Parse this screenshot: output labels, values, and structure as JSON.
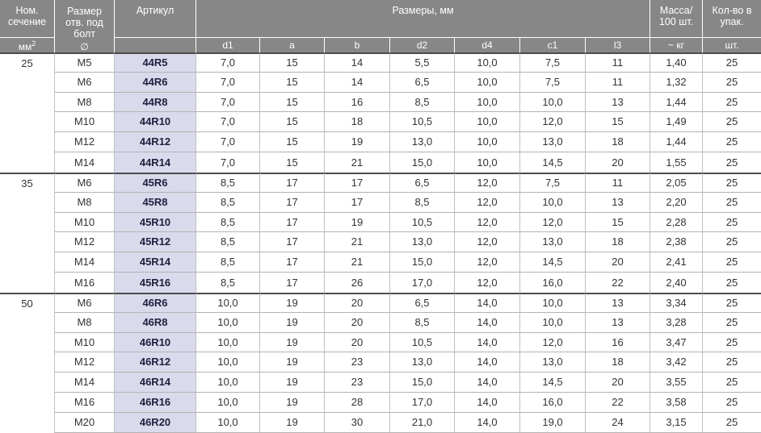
{
  "table": {
    "header": {
      "col1_title": "Ном.\nсечение",
      "col1_unit": "мм",
      "col1_unit_sup": "2",
      "col2_title": "Размер\nотв. под\nболт",
      "col2_unit": "∅",
      "col3_title": "Артикул",
      "col3_unit": "",
      "dims_title": "Размеры, мм",
      "dims_cols": [
        "d1",
        "a",
        "b",
        "d2",
        "d4",
        "c1",
        "l3"
      ],
      "mass_title": "Масса/\n100 шт.",
      "mass_unit": "~ кг",
      "pack_title": "Кол-во в\nупак.",
      "pack_unit": "шт."
    },
    "columns": [
      "bolt-size",
      "article",
      "d1",
      "a",
      "b",
      "d2",
      "d4",
      "c1",
      "l3",
      "mass",
      "pack"
    ],
    "sections": [
      {
        "section": "25",
        "rows": [
          [
            "M5",
            "44R5",
            "7,0",
            "15",
            "14",
            "5,5",
            "10,0",
            "7,5",
            "11",
            "1,40",
            "25"
          ],
          [
            "M6",
            "44R6",
            "7,0",
            "15",
            "14",
            "6,5",
            "10,0",
            "7,5",
            "11",
            "1,32",
            "25"
          ],
          [
            "M8",
            "44R8",
            "7,0",
            "15",
            "16",
            "8,5",
            "10,0",
            "10,0",
            "13",
            "1,44",
            "25"
          ],
          [
            "M10",
            "44R10",
            "7,0",
            "15",
            "18",
            "10,5",
            "10,0",
            "12,0",
            "15",
            "1,49",
            "25"
          ],
          [
            "M12",
            "44R12",
            "7,0",
            "15",
            "19",
            "13,0",
            "10,0",
            "13,0",
            "18",
            "1,44",
            "25"
          ],
          [
            "M14",
            "44R14",
            "7,0",
            "15",
            "21",
            "15,0",
            "10,0",
            "14,5",
            "20",
            "1,55",
            "25"
          ]
        ]
      },
      {
        "section": "35",
        "rows": [
          [
            "M6",
            "45R6",
            "8,5",
            "17",
            "17",
            "6,5",
            "12,0",
            "7,5",
            "11",
            "2,05",
            "25"
          ],
          [
            "M8",
            "45R8",
            "8,5",
            "17",
            "17",
            "8,5",
            "12,0",
            "10,0",
            "13",
            "2,20",
            "25"
          ],
          [
            "M10",
            "45R10",
            "8,5",
            "17",
            "19",
            "10,5",
            "12,0",
            "12,0",
            "15",
            "2,28",
            "25"
          ],
          [
            "M12",
            "45R12",
            "8,5",
            "17",
            "21",
            "13,0",
            "12,0",
            "13,0",
            "18",
            "2,38",
            "25"
          ],
          [
            "M14",
            "45R14",
            "8,5",
            "17",
            "21",
            "15,0",
            "12,0",
            "14,5",
            "20",
            "2,41",
            "25"
          ],
          [
            "M16",
            "45R16",
            "8,5",
            "17",
            "26",
            "17,0",
            "12,0",
            "16,0",
            "22",
            "2,40",
            "25"
          ]
        ]
      },
      {
        "section": "50",
        "rows": [
          [
            "M6",
            "46R6",
            "10,0",
            "19",
            "20",
            "6,5",
            "14,0",
            "10,0",
            "13",
            "3,34",
            "25"
          ],
          [
            "M8",
            "46R8",
            "10,0",
            "19",
            "20",
            "8,5",
            "14,0",
            "10,0",
            "13",
            "3,28",
            "25"
          ],
          [
            "M10",
            "46R10",
            "10,0",
            "19",
            "20",
            "10,5",
            "14,0",
            "12,0",
            "16",
            "3,47",
            "25"
          ],
          [
            "M12",
            "46R12",
            "10,0",
            "19",
            "23",
            "13,0",
            "14,0",
            "13,0",
            "18",
            "3,42",
            "25"
          ],
          [
            "M14",
            "46R14",
            "10,0",
            "19",
            "23",
            "15,0",
            "14,0",
            "14,5",
            "20",
            "3,55",
            "25"
          ],
          [
            "M16",
            "46R16",
            "10,0",
            "19",
            "28",
            "17,0",
            "14,0",
            "16,0",
            "22",
            "3,58",
            "25"
          ],
          [
            "M20",
            "46R20",
            "10,0",
            "19",
            "30",
            "21,0",
            "14,0",
            "19,0",
            "24",
            "3,15",
            "25"
          ]
        ]
      }
    ],
    "colors": {
      "header_bg": "#878787",
      "header_text": "#ffffff",
      "article_bg": "#d9dbec",
      "article_text": "#20203e",
      "body_text": "#333333",
      "row_line": "#b3b3b3",
      "section_line": "#4c4c4c"
    }
  }
}
